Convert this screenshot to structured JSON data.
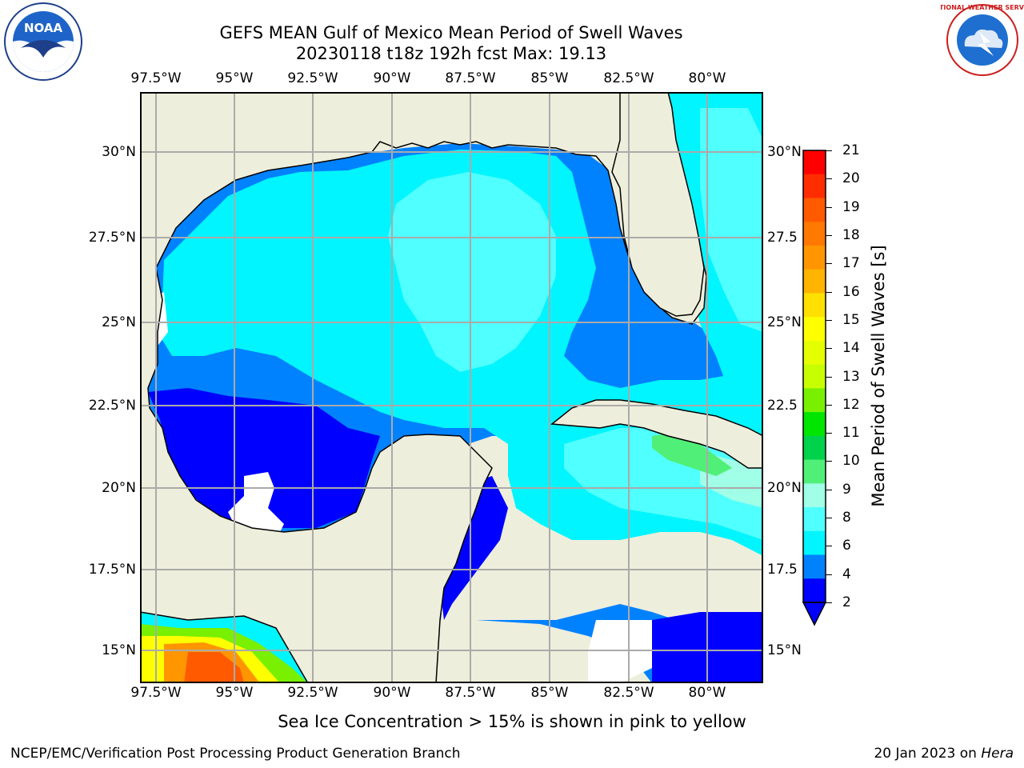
{
  "title": {
    "line1": "GEFS MEAN Gulf of Mexico Mean Period of Swell Waves",
    "line2": "20230118 t18z 192h fcst   Max: 19.13"
  },
  "map": {
    "lon_labels": [
      "97.5°W",
      "95°W",
      "92.5°W",
      "90°W",
      "87.5°W",
      "85°W",
      "82.5°W",
      "80°W"
    ],
    "lat_labels": [
      "30°N",
      "27.5°N",
      "25°N",
      "22.5°N",
      "20°N",
      "17.5°N",
      "15°N"
    ],
    "lat_labels_right": [
      "30°N",
      "27.5",
      "25°N",
      "22.5",
      "20°N",
      "17.5",
      "15°N"
    ],
    "land_color": "#eeeedc",
    "grid_color": "#aaaaaa"
  },
  "colorbar": {
    "label": "Mean Period of Swell Waves [s]",
    "ticks": [
      "21",
      "20",
      "19",
      "18",
      "17",
      "16",
      "15",
      "14",
      "13",
      "12",
      "11",
      "10",
      "9",
      "8",
      "6",
      "4",
      "2"
    ],
    "colors": [
      "#ff0000",
      "#ff2d00",
      "#ff5a00",
      "#ff7800",
      "#ff9600",
      "#ffb400",
      "#ffe000",
      "#ffff00",
      "#e6ff00",
      "#c8ff00",
      "#78f000",
      "#00e600",
      "#00d24b",
      "#50f078",
      "#a0ffe6",
      "#50ffff",
      "#00f5ff",
      "#0082ff",
      "#0000ff"
    ]
  },
  "notes": {
    "ice": "Sea Ice Concentration > 15% is shown in pink to yellow"
  },
  "footer": {
    "left": "NCEP/EMC/Verification Post Processing Product Generation Branch",
    "date": "20 Jan 2023 on ",
    "host": "Hera"
  },
  "logos": {
    "noaa": "NOAA",
    "nws": "NATIONAL WEATHER SERVICE"
  }
}
